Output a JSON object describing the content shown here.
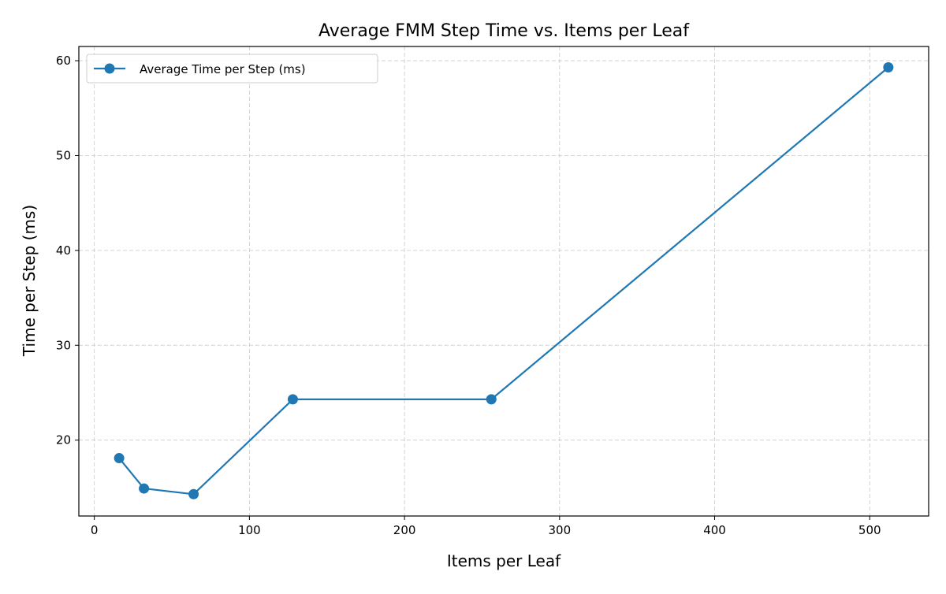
{
  "chart_data": {
    "type": "line",
    "title": "Average FMM Step Time vs. Items per Leaf",
    "xlabel": "Items per Leaf",
    "ylabel": "Time per Step (ms)",
    "xlim": [
      -10,
      538
    ],
    "ylim": [
      12,
      61.5
    ],
    "xticks": [
      0,
      100,
      200,
      300,
      400,
      500
    ],
    "yticks": [
      20,
      30,
      40,
      50,
      60
    ],
    "grid": true,
    "legend_position": "top-left",
    "series": [
      {
        "name": "Average Time per Step (ms)",
        "color": "#1f77b4",
        "marker": "circle",
        "x": [
          16,
          32,
          64,
          128,
          256,
          512
        ],
        "y": [
          18.1,
          14.9,
          14.3,
          24.3,
          24.3,
          59.3
        ]
      }
    ]
  }
}
